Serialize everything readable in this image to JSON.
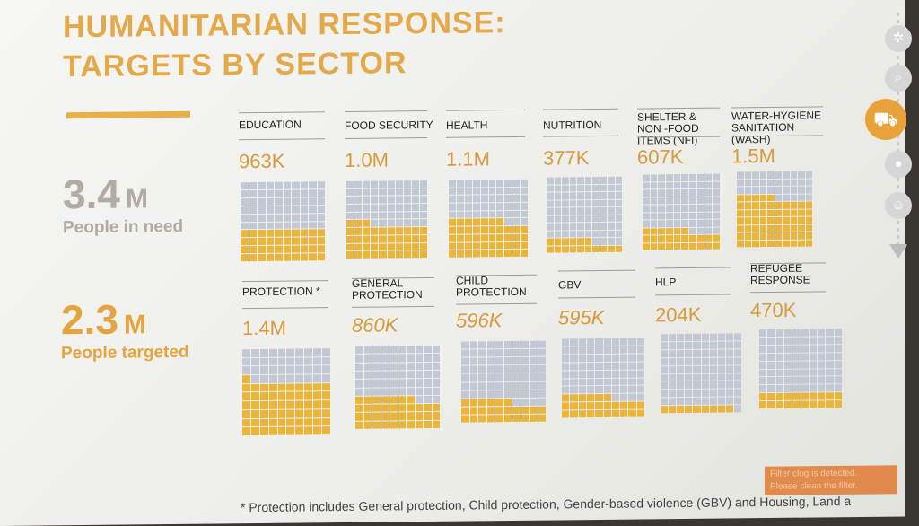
{
  "title": {
    "line1": "HUMANITARIAN RESPONSE:",
    "line2": "TARGETS BY SECTOR"
  },
  "summary": {
    "in_need": {
      "value": "3.4",
      "unit": "M",
      "label": "People in need"
    },
    "targeted": {
      "value": "2.3",
      "unit": "M",
      "label": "People targeted"
    }
  },
  "footnote": "* Protection includes General protection, Child protection, Gender-based violence (GBV) and Housing, Land a",
  "filter_note": {
    "line1": "Filter clog is detected.",
    "line2": "Please clean the filter."
  },
  "colors": {
    "accent": "#e9b53d",
    "cell": "#c3c9d4",
    "title": "#e3a94b"
  },
  "nav_icons": [
    "snowflake-icon",
    "search-icon",
    "truck-icon",
    "location-icon",
    "people-icon"
  ],
  "chart_data": {
    "type": "waffle",
    "grid_cells": 100,
    "sectors": [
      {
        "name": "EDUCATION",
        "value_label": "963K",
        "filled": 40
      },
      {
        "name": "FOOD SECURITY",
        "value_label": "1.0M",
        "filled": 43
      },
      {
        "name": "HEALTH",
        "value_label": "1.1M",
        "filled": 47
      },
      {
        "name": "NUTRITION",
        "value_label": "377K",
        "filled": 16
      },
      {
        "name": "SHELTER & NON -FOOD ITEMS (NFI)",
        "value_label": "607K",
        "filled": 26
      },
      {
        "name": "WATER-HYGIENE SANITATION (WASH)",
        "value_label": "1.5M",
        "filled": 65
      },
      {
        "name": "PROTECTION *",
        "value_label": "1.4M",
        "filled": 61
      },
      {
        "name": "GENERAL PROTECTION",
        "value_label": "860K",
        "filled": 37
      },
      {
        "name": "CHILD PROTECTION",
        "value_label": "596K",
        "filled": 26
      },
      {
        "name": "GBV",
        "value_label": "595K",
        "filled": 26
      },
      {
        "name": "HLP",
        "value_label": "204K",
        "filled": 9
      },
      {
        "name": "REFUGEE RESPONSE",
        "value_label": "470K",
        "filled": 20
      }
    ]
  }
}
